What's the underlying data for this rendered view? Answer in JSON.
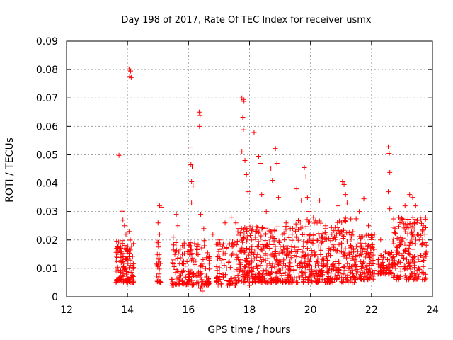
{
  "chart_data": {
    "type": "scatter",
    "title": "Day 198 of 2017, Rate Of TEC Index for receiver usmx",
    "xlabel": "GPS time / hours",
    "ylabel": "ROTI / TECUs",
    "xlim": [
      12,
      24
    ],
    "ylim": [
      0,
      0.09
    ],
    "xticks": [
      12,
      14,
      16,
      18,
      20,
      22,
      24
    ],
    "yticks": [
      0,
      0.01,
      0.02,
      0.03,
      0.04,
      0.05,
      0.06,
      0.07,
      0.08,
      0.09
    ],
    "xtick_labels": [
      "12",
      "14",
      "16",
      "18",
      "20",
      "22",
      "24"
    ],
    "ytick_labels": [
      "0",
      "0.01",
      "0.02",
      "0.03",
      "0.04",
      "0.05",
      "0.06",
      "0.07",
      "0.08",
      "0.09"
    ],
    "grid": true,
    "marker": "+",
    "series_color": "#ff0000",
    "series": [
      {
        "name": "ROTI",
        "points": [
          [
            13.72,
            0.0498
          ],
          [
            13.82,
            0.0301
          ],
          [
            13.85,
            0.027
          ],
          [
            13.9,
            0.025
          ],
          [
            13.95,
            0.022
          ],
          [
            14.05,
            0.0802
          ],
          [
            14.1,
            0.0795
          ],
          [
            14.07,
            0.0776
          ],
          [
            14.12,
            0.0772
          ],
          [
            14.05,
            0.023
          ],
          [
            15.05,
            0.032
          ],
          [
            15.1,
            0.0315
          ],
          [
            15.0,
            0.026
          ],
          [
            15.05,
            0.022
          ],
          [
            15.5,
            0.021
          ],
          [
            15.6,
            0.029
          ],
          [
            15.65,
            0.025
          ],
          [
            15.8,
            0.018
          ],
          [
            16.05,
            0.0527
          ],
          [
            16.08,
            0.0465
          ],
          [
            16.12,
            0.046
          ],
          [
            16.1,
            0.0405
          ],
          [
            16.15,
            0.039
          ],
          [
            16.1,
            0.033
          ],
          [
            16.35,
            0.065
          ],
          [
            16.38,
            0.0638
          ],
          [
            16.36,
            0.06
          ],
          [
            16.4,
            0.029
          ],
          [
            16.5,
            0.024
          ],
          [
            16.8,
            0.022
          ],
          [
            17.0,
            0.02
          ],
          [
            17.2,
            0.026
          ],
          [
            17.4,
            0.028
          ],
          [
            17.55,
            0.026
          ],
          [
            17.75,
            0.07
          ],
          [
            17.8,
            0.0695
          ],
          [
            17.82,
            0.0688
          ],
          [
            17.78,
            0.0632
          ],
          [
            17.8,
            0.0588
          ],
          [
            17.75,
            0.051
          ],
          [
            17.85,
            0.048
          ],
          [
            17.9,
            0.043
          ],
          [
            17.95,
            0.037
          ],
          [
            18.15,
            0.0578
          ],
          [
            18.3,
            0.0495
          ],
          [
            18.35,
            0.047
          ],
          [
            18.28,
            0.04
          ],
          [
            18.4,
            0.036
          ],
          [
            18.55,
            0.03
          ],
          [
            18.7,
            0.045
          ],
          [
            18.75,
            0.041
          ],
          [
            18.85,
            0.0522
          ],
          [
            18.9,
            0.047
          ],
          [
            18.95,
            0.035
          ],
          [
            19.2,
            0.026
          ],
          [
            19.4,
            0.022
          ],
          [
            19.55,
            0.038
          ],
          [
            19.7,
            0.034
          ],
          [
            19.8,
            0.0455
          ],
          [
            19.85,
            0.0425
          ],
          [
            19.9,
            0.035
          ],
          [
            19.95,
            0.03
          ],
          [
            20.3,
            0.034
          ],
          [
            20.5,
            0.025
          ],
          [
            20.7,
            0.022
          ],
          [
            20.9,
            0.032
          ],
          [
            21.05,
            0.0405
          ],
          [
            21.1,
            0.0395
          ],
          [
            21.15,
            0.036
          ],
          [
            21.2,
            0.033
          ],
          [
            21.6,
            0.03
          ],
          [
            21.75,
            0.0345
          ],
          [
            21.9,
            0.025
          ],
          [
            22.1,
            0.022
          ],
          [
            22.3,
            0.02
          ],
          [
            22.55,
            0.0528
          ],
          [
            22.58,
            0.0505
          ],
          [
            22.6,
            0.0438
          ],
          [
            22.55,
            0.037
          ],
          [
            22.6,
            0.031
          ],
          [
            22.9,
            0.028
          ],
          [
            23.1,
            0.032
          ],
          [
            23.25,
            0.036
          ],
          [
            23.35,
            0.035
          ],
          [
            23.45,
            0.032
          ],
          [
            23.6,
            0.028
          ],
          [
            23.7,
            0.025
          ],
          [
            23.75,
            0.022
          ],
          [
            16.4,
            0.003
          ],
          [
            16.45,
            0.002
          ],
          [
            14.0,
            0.005
          ],
          [
            18.0,
            0.004
          ]
        ],
        "dense_bands": [
          {
            "x": [
              13.62,
              14.2
            ],
            "y": [
              0.005,
              0.02
            ],
            "count": 130
          },
          {
            "x": [
              14.95,
              15.1
            ],
            "y": [
              0.005,
              0.02
            ],
            "count": 30
          },
          {
            "x": [
              15.45,
              16.7
            ],
            "y": [
              0.004,
              0.02
            ],
            "count": 180
          },
          {
            "x": [
              16.9,
              17.6
            ],
            "y": [
              0.004,
              0.02
            ],
            "count": 90
          },
          {
            "x": [
              17.6,
              19.5
            ],
            "y": [
              0.005,
              0.025
            ],
            "count": 380
          },
          {
            "x": [
              19.5,
              21.5
            ],
            "y": [
              0.005,
              0.028
            ],
            "count": 360
          },
          {
            "x": [
              21.5,
              22.1
            ],
            "y": [
              0.006,
              0.022
            ],
            "count": 110
          },
          {
            "x": [
              22.2,
              22.7
            ],
            "y": [
              0.008,
              0.016
            ],
            "count": 70
          },
          {
            "x": [
              22.7,
              23.8
            ],
            "y": [
              0.006,
              0.028
            ],
            "count": 200
          }
        ]
      }
    ]
  }
}
